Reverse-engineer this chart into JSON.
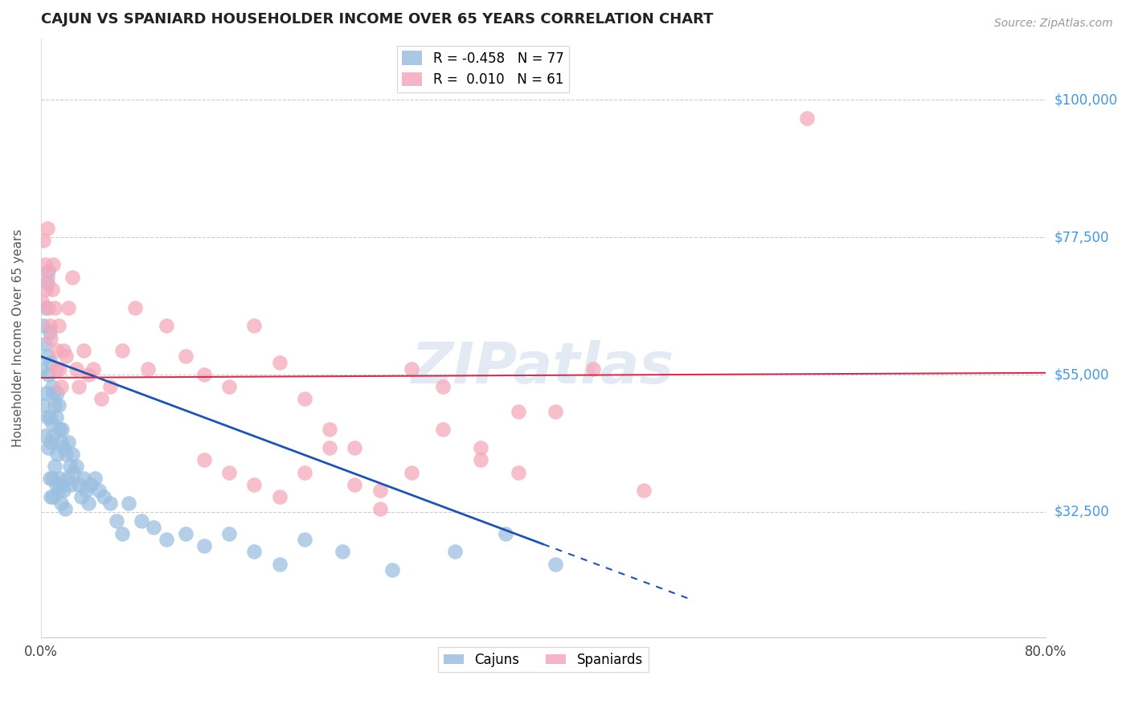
{
  "title": "CAJUN VS SPANIARD HOUSEHOLDER INCOME OVER 65 YEARS CORRELATION CHART",
  "source": "Source: ZipAtlas.com",
  "ylabel": "Householder Income Over 65 years",
  "y_ticks": [
    32500,
    55000,
    77500,
    100000
  ],
  "y_tick_labels": [
    "$32,500",
    "$55,000",
    "$77,500",
    "$100,000"
  ],
  "x_min": 0.0,
  "x_max": 0.8,
  "y_min": 12000,
  "y_max": 110000,
  "cajun_color": "#9bbfe0",
  "spaniard_color": "#f5a8bc",
  "cajun_line_color": "#2255aa",
  "spaniard_line_color": "#cc3355",
  "legend_cajun_r": "-0.458",
  "legend_cajun_n": "77",
  "legend_spaniard_r": "0.010",
  "legend_spaniard_n": "61",
  "watermark": "ZIPatlas",
  "cajun_line_x0": 0.0,
  "cajun_line_x1": 0.52,
  "cajun_line_y0": 58000,
  "cajun_line_y1": 18000,
  "cajun_line_dash_x0": 0.4,
  "cajun_line_dash_x1": 0.52,
  "cajun_line_dash_y0": 26000,
  "cajun_line_dash_y1": 18000,
  "spaniard_line_x0": 0.0,
  "spaniard_line_x1": 0.8,
  "spaniard_line_y0": 54500,
  "spaniard_line_y1": 55300,
  "cajun_points_x": [
    0.001,
    0.002,
    0.002,
    0.003,
    0.003,
    0.004,
    0.004,
    0.005,
    0.005,
    0.005,
    0.006,
    0.006,
    0.006,
    0.007,
    0.007,
    0.007,
    0.008,
    0.008,
    0.008,
    0.009,
    0.009,
    0.009,
    0.01,
    0.01,
    0.01,
    0.011,
    0.011,
    0.012,
    0.012,
    0.013,
    0.013,
    0.014,
    0.014,
    0.015,
    0.015,
    0.016,
    0.016,
    0.017,
    0.017,
    0.018,
    0.018,
    0.019,
    0.02,
    0.021,
    0.022,
    0.023,
    0.024,
    0.025,
    0.026,
    0.028,
    0.03,
    0.032,
    0.034,
    0.036,
    0.038,
    0.04,
    0.043,
    0.046,
    0.05,
    0.055,
    0.06,
    0.065,
    0.07,
    0.08,
    0.09,
    0.1,
    0.115,
    0.13,
    0.15,
    0.17,
    0.19,
    0.21,
    0.24,
    0.28,
    0.33,
    0.37,
    0.41
  ],
  "cajun_points_y": [
    56000,
    63000,
    50000,
    60000,
    45000,
    66000,
    52000,
    70000,
    48000,
    58000,
    72000,
    55000,
    43000,
    62000,
    48000,
    38000,
    57000,
    44000,
    35000,
    53000,
    47000,
    38000,
    52000,
    45000,
    35000,
    50000,
    40000,
    48000,
    37000,
    52000,
    42000,
    50000,
    36000,
    46000,
    38000,
    44000,
    34000,
    46000,
    37000,
    43000,
    36000,
    33000,
    42000,
    38000,
    44000,
    40000,
    37000,
    42000,
    39000,
    40000,
    37000,
    35000,
    38000,
    36000,
    34000,
    37000,
    38000,
    36000,
    35000,
    34000,
    31000,
    29000,
    34000,
    31000,
    30000,
    28000,
    29000,
    27000,
    29000,
    26000,
    24000,
    28000,
    26000,
    23000,
    26000,
    29000,
    24000
  ],
  "spaniard_points_x": [
    0.001,
    0.002,
    0.003,
    0.004,
    0.005,
    0.005,
    0.006,
    0.007,
    0.008,
    0.009,
    0.01,
    0.011,
    0.012,
    0.013,
    0.014,
    0.015,
    0.016,
    0.018,
    0.02,
    0.022,
    0.025,
    0.028,
    0.03,
    0.034,
    0.038,
    0.042,
    0.048,
    0.055,
    0.065,
    0.075,
    0.085,
    0.1,
    0.115,
    0.13,
    0.15,
    0.17,
    0.19,
    0.21,
    0.23,
    0.25,
    0.27,
    0.295,
    0.32,
    0.35,
    0.38,
    0.41,
    0.44,
    0.48,
    0.13,
    0.15,
    0.17,
    0.19,
    0.21,
    0.23,
    0.25,
    0.27,
    0.295,
    0.32,
    0.35,
    0.38,
    0.61
  ],
  "spaniard_points_y": [
    67000,
    77000,
    73000,
    69000,
    71000,
    79000,
    66000,
    63000,
    61000,
    69000,
    73000,
    66000,
    56000,
    59000,
    63000,
    56000,
    53000,
    59000,
    58000,
    66000,
    71000,
    56000,
    53000,
    59000,
    55000,
    56000,
    51000,
    53000,
    59000,
    66000,
    56000,
    63000,
    58000,
    55000,
    53000,
    63000,
    57000,
    51000,
    46000,
    43000,
    36000,
    56000,
    53000,
    41000,
    39000,
    49000,
    56000,
    36000,
    41000,
    39000,
    37000,
    35000,
    39000,
    43000,
    37000,
    33000,
    39000,
    46000,
    43000,
    49000,
    97000
  ]
}
